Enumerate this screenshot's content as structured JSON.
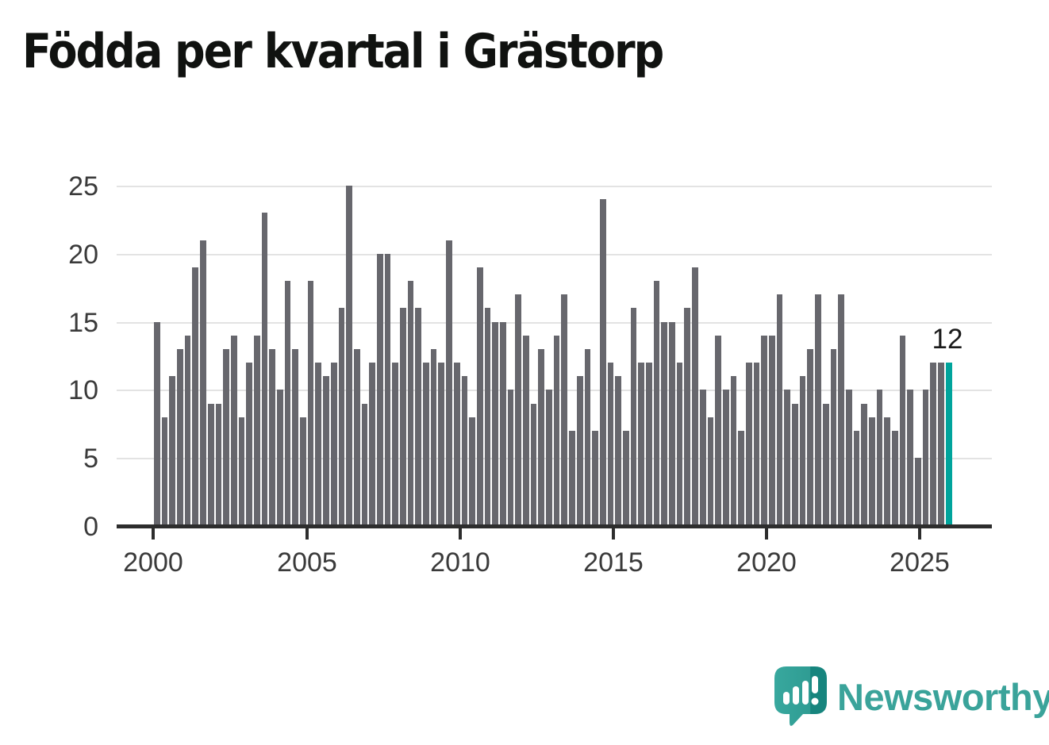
{
  "title": "Födda per kvartal i Grästorp",
  "chart_data": {
    "type": "bar",
    "title": "Födda per kvartal i Grästorp",
    "x_start": "2000Q1",
    "x_frequency": "quarterly",
    "values": [
      15,
      8,
      11,
      13,
      14,
      19,
      21,
      9,
      9,
      13,
      14,
      8,
      12,
      14,
      23,
      13,
      10,
      18,
      13,
      8,
      18,
      12,
      11,
      12,
      16,
      25,
      13,
      9,
      12,
      20,
      20,
      12,
      16,
      18,
      16,
      12,
      13,
      12,
      21,
      12,
      11,
      8,
      19,
      16,
      15,
      15,
      10,
      17,
      14,
      9,
      13,
      10,
      14,
      17,
      7,
      11,
      13,
      7,
      24,
      12,
      11,
      7,
      16,
      12,
      12,
      18,
      15,
      15,
      12,
      16,
      19,
      10,
      8,
      14,
      10,
      11,
      7,
      12,
      12,
      14,
      14,
      17,
      10,
      9,
      11,
      13,
      17,
      9,
      13,
      17,
      10,
      7,
      9,
      8,
      10,
      8,
      7,
      14,
      10,
      5,
      10,
      12,
      12,
      12
    ],
    "start_year": 2000,
    "x_tick_labels": [
      "2000",
      "2005",
      "2010",
      "2015",
      "2020",
      "2025"
    ],
    "y_tick_labels": [
      "0",
      "5",
      "10",
      "15",
      "20",
      "25"
    ],
    "ylim": [
      0,
      25
    ],
    "grid": "horizontal",
    "legend": "none",
    "bar_color": "#67676d",
    "highlight_color": "#00a49c",
    "highlight_index": 103,
    "annotation": {
      "text": "12",
      "target": "last-bar"
    }
  },
  "logo": {
    "text": "Newsworthy",
    "color": "#3aa39a",
    "icon": "newsworthy-speech-bubble-bar-chart"
  }
}
